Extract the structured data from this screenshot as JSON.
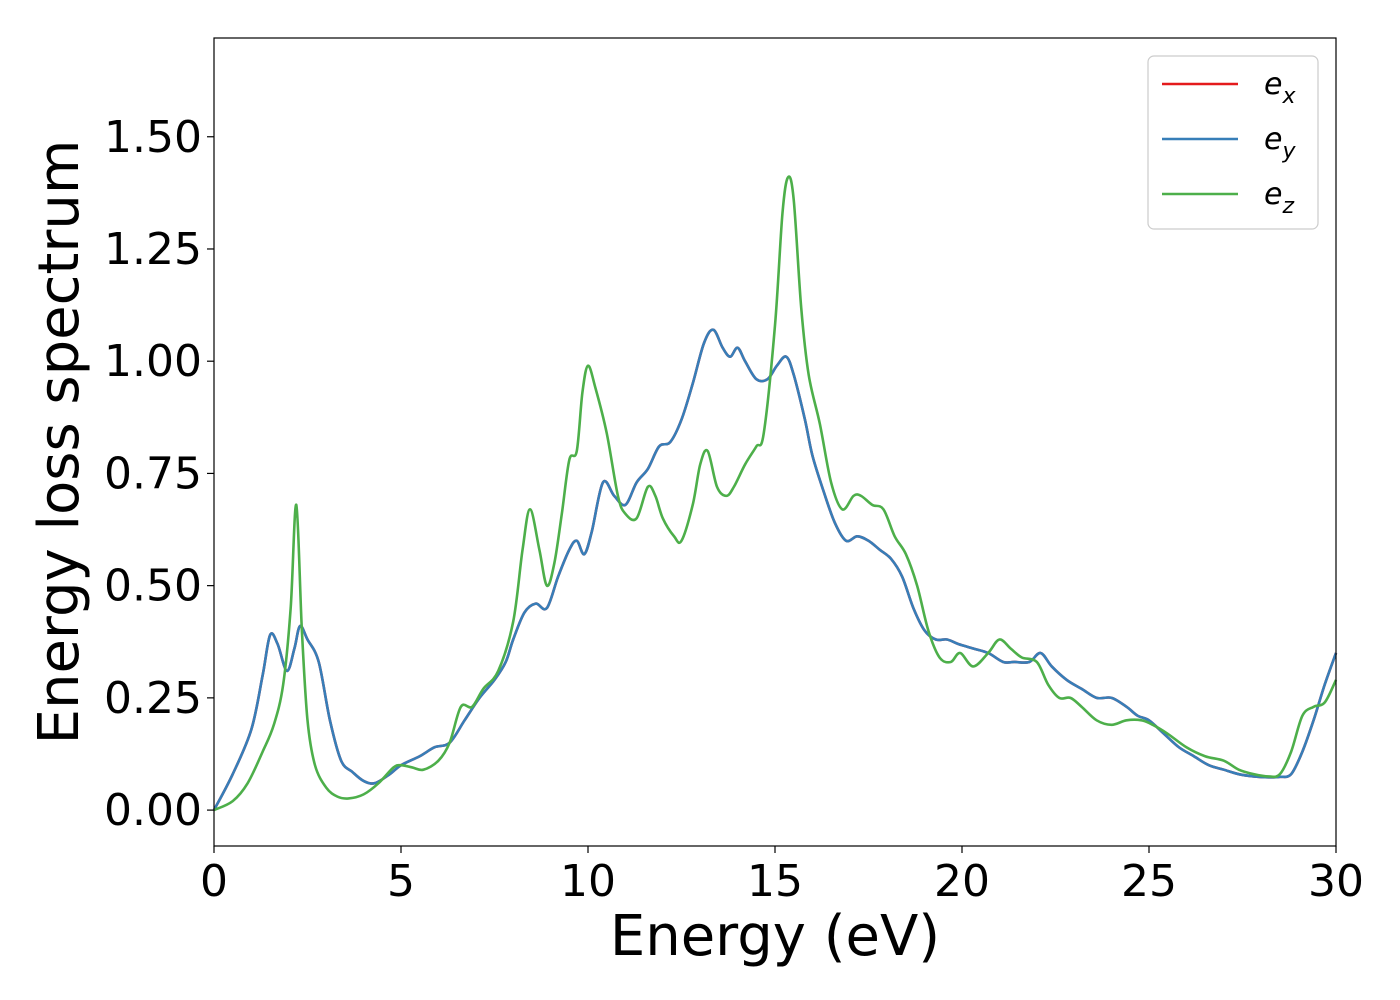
{
  "chart_data": {
    "type": "line",
    "xlabel": "Energy (eV)",
    "ylabel": "Energy loss spectrum",
    "xlim": [
      0,
      30
    ],
    "ylim": [
      -0.08,
      1.72
    ],
    "xticks": [
      0,
      5,
      10,
      15,
      20,
      25,
      30
    ],
    "xtick_labels": [
      "0",
      "5",
      "10",
      "15",
      "20",
      "25",
      "30"
    ],
    "yticks": [
      0,
      0.25,
      0.5,
      0.75,
      1.0,
      1.25,
      1.5
    ],
    "ytick_labels": [
      "0.00",
      "0.25",
      "0.50",
      "0.75",
      "1.00",
      "1.25",
      "1.50"
    ],
    "grid": false,
    "legend_position": "top-right",
    "series": [
      {
        "name": "e_x",
        "label_base": "e",
        "label_sub": "x",
        "color": "#e41a1c",
        "x": [
          0,
          0.5,
          1.0,
          1.3,
          1.5,
          1.7,
          1.95,
          2.15,
          2.3,
          2.5,
          2.8,
          3.1,
          3.4,
          3.7,
          4.0,
          4.3,
          4.7,
          5.0,
          5.5,
          5.9,
          6.3,
          6.7,
          7.1,
          7.5,
          7.8,
          8.0,
          8.3,
          8.6,
          8.9,
          9.2,
          9.5,
          9.7,
          9.9,
          10.1,
          10.4,
          10.7,
          11.0,
          11.3,
          11.6,
          11.9,
          12.2,
          12.5,
          12.8,
          13.1,
          13.35,
          13.6,
          13.8,
          14.0,
          14.2,
          14.5,
          14.8,
          15.05,
          15.3,
          15.5,
          15.8,
          16.0,
          16.3,
          16.6,
          16.9,
          17.2,
          17.5,
          17.8,
          18.1,
          18.4,
          18.7,
          19.0,
          19.3,
          19.6,
          19.9,
          20.3,
          20.7,
          21.1,
          21.4,
          21.8,
          22.1,
          22.4,
          22.8,
          23.2,
          23.6,
          24.0,
          24.4,
          24.7,
          25.0,
          25.4,
          25.8,
          26.2,
          26.6,
          27.0,
          27.4,
          27.8,
          28.2,
          28.5,
          28.8,
          29.1,
          29.4,
          29.7,
          30.0
        ],
        "y": [
          0,
          0.08,
          0.18,
          0.3,
          0.39,
          0.37,
          0.31,
          0.36,
          0.41,
          0.38,
          0.33,
          0.2,
          0.11,
          0.085,
          0.065,
          0.06,
          0.08,
          0.1,
          0.12,
          0.14,
          0.15,
          0.2,
          0.25,
          0.29,
          0.33,
          0.38,
          0.44,
          0.46,
          0.45,
          0.52,
          0.58,
          0.6,
          0.57,
          0.62,
          0.73,
          0.7,
          0.68,
          0.73,
          0.76,
          0.81,
          0.82,
          0.87,
          0.95,
          1.04,
          1.07,
          1.03,
          1.01,
          1.03,
          1.0,
          0.96,
          0.96,
          0.99,
          1.01,
          0.97,
          0.87,
          0.79,
          0.71,
          0.64,
          0.6,
          0.61,
          0.6,
          0.58,
          0.56,
          0.52,
          0.45,
          0.4,
          0.38,
          0.38,
          0.37,
          0.36,
          0.35,
          0.33,
          0.33,
          0.33,
          0.35,
          0.32,
          0.29,
          0.27,
          0.25,
          0.25,
          0.23,
          0.21,
          0.2,
          0.17,
          0.14,
          0.12,
          0.1,
          0.09,
          0.08,
          0.075,
          0.073,
          0.074,
          0.08,
          0.13,
          0.2,
          0.28,
          0.35
        ]
      },
      {
        "name": "e_y",
        "label_base": "e",
        "label_sub": "y",
        "color": "#377eb8",
        "x": [
          0,
          0.5,
          1.0,
          1.3,
          1.5,
          1.7,
          1.95,
          2.15,
          2.3,
          2.5,
          2.8,
          3.1,
          3.4,
          3.7,
          4.0,
          4.3,
          4.7,
          5.0,
          5.5,
          5.9,
          6.3,
          6.7,
          7.1,
          7.5,
          7.8,
          8.0,
          8.3,
          8.6,
          8.9,
          9.2,
          9.5,
          9.7,
          9.9,
          10.1,
          10.4,
          10.7,
          11.0,
          11.3,
          11.6,
          11.9,
          12.2,
          12.5,
          12.8,
          13.1,
          13.35,
          13.6,
          13.8,
          14.0,
          14.2,
          14.5,
          14.8,
          15.05,
          15.3,
          15.5,
          15.8,
          16.0,
          16.3,
          16.6,
          16.9,
          17.2,
          17.5,
          17.8,
          18.1,
          18.4,
          18.7,
          19.0,
          19.3,
          19.6,
          19.9,
          20.3,
          20.7,
          21.1,
          21.4,
          21.8,
          22.1,
          22.4,
          22.8,
          23.2,
          23.6,
          24.0,
          24.4,
          24.7,
          25.0,
          25.4,
          25.8,
          26.2,
          26.6,
          27.0,
          27.4,
          27.8,
          28.2,
          28.5,
          28.8,
          29.1,
          29.4,
          29.7,
          30.0
        ],
        "y": [
          0,
          0.08,
          0.18,
          0.3,
          0.39,
          0.37,
          0.31,
          0.36,
          0.41,
          0.38,
          0.33,
          0.2,
          0.11,
          0.085,
          0.065,
          0.06,
          0.08,
          0.1,
          0.12,
          0.14,
          0.15,
          0.2,
          0.25,
          0.29,
          0.33,
          0.38,
          0.44,
          0.46,
          0.45,
          0.52,
          0.58,
          0.6,
          0.57,
          0.62,
          0.73,
          0.7,
          0.68,
          0.73,
          0.76,
          0.81,
          0.82,
          0.87,
          0.95,
          1.04,
          1.07,
          1.03,
          1.01,
          1.03,
          1.0,
          0.96,
          0.96,
          0.99,
          1.01,
          0.97,
          0.87,
          0.79,
          0.71,
          0.64,
          0.6,
          0.61,
          0.6,
          0.58,
          0.56,
          0.52,
          0.45,
          0.4,
          0.38,
          0.38,
          0.37,
          0.36,
          0.35,
          0.33,
          0.33,
          0.33,
          0.35,
          0.32,
          0.29,
          0.27,
          0.25,
          0.25,
          0.23,
          0.21,
          0.2,
          0.17,
          0.14,
          0.12,
          0.1,
          0.09,
          0.08,
          0.075,
          0.073,
          0.074,
          0.08,
          0.13,
          0.2,
          0.28,
          0.35
        ]
      },
      {
        "name": "e_z",
        "label_base": "e",
        "label_sub": "z",
        "color": "#4daf4a",
        "x": [
          0,
          0.5,
          0.9,
          1.3,
          1.6,
          1.85,
          2.05,
          2.2,
          2.35,
          2.5,
          2.7,
          3.0,
          3.3,
          3.6,
          4.0,
          4.4,
          4.8,
          5.0,
          5.3,
          5.6,
          6.0,
          6.3,
          6.6,
          6.9,
          7.2,
          7.6,
          8.0,
          8.25,
          8.45,
          8.7,
          8.9,
          9.1,
          9.3,
          9.5,
          9.7,
          9.85,
          10.0,
          10.2,
          10.5,
          10.8,
          11.0,
          11.3,
          11.6,
          11.8,
          12.0,
          12.3,
          12.5,
          12.8,
          13.0,
          13.2,
          13.45,
          13.7,
          13.9,
          14.2,
          14.5,
          14.7,
          15.0,
          15.2,
          15.35,
          15.5,
          15.7,
          15.9,
          16.2,
          16.5,
          16.8,
          17.1,
          17.3,
          17.6,
          17.9,
          18.2,
          18.5,
          18.8,
          19.1,
          19.4,
          19.7,
          19.95,
          20.3,
          20.7,
          21.0,
          21.3,
          21.6,
          22.0,
          22.3,
          22.6,
          22.9,
          23.2,
          23.6,
          24.0,
          24.4,
          24.8,
          25.1,
          25.5,
          26.0,
          26.5,
          27.0,
          27.4,
          27.8,
          28.2,
          28.5,
          28.8,
          29.1,
          29.4,
          29.7,
          30.0
        ],
        "y": [
          0,
          0.02,
          0.06,
          0.13,
          0.19,
          0.28,
          0.45,
          0.68,
          0.4,
          0.2,
          0.1,
          0.05,
          0.03,
          0.026,
          0.035,
          0.06,
          0.095,
          0.1,
          0.095,
          0.09,
          0.11,
          0.15,
          0.23,
          0.23,
          0.27,
          0.31,
          0.42,
          0.58,
          0.67,
          0.58,
          0.5,
          0.55,
          0.66,
          0.78,
          0.8,
          0.93,
          0.99,
          0.94,
          0.84,
          0.7,
          0.66,
          0.65,
          0.72,
          0.7,
          0.65,
          0.61,
          0.6,
          0.68,
          0.77,
          0.8,
          0.72,
          0.7,
          0.72,
          0.77,
          0.81,
          0.84,
          1.08,
          1.33,
          1.41,
          1.36,
          1.12,
          0.97,
          0.86,
          0.73,
          0.67,
          0.7,
          0.7,
          0.68,
          0.67,
          0.61,
          0.57,
          0.5,
          0.4,
          0.34,
          0.33,
          0.35,
          0.32,
          0.35,
          0.38,
          0.36,
          0.34,
          0.33,
          0.28,
          0.25,
          0.25,
          0.23,
          0.2,
          0.19,
          0.2,
          0.2,
          0.19,
          0.17,
          0.14,
          0.12,
          0.11,
          0.09,
          0.08,
          0.075,
          0.08,
          0.13,
          0.21,
          0.23,
          0.24,
          0.29
        ]
      }
    ]
  }
}
